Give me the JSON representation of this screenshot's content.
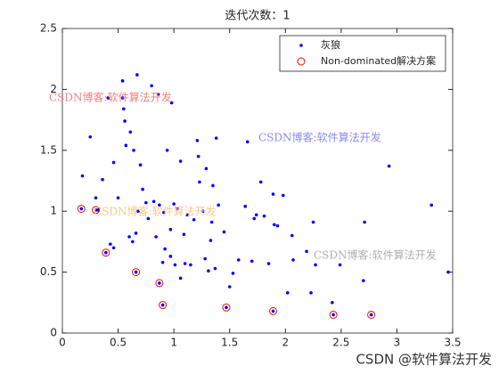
{
  "chart_data": {
    "type": "scatter",
    "title": "迭代次数：1",
    "xlim": [
      0,
      3.5
    ],
    "xticks": [
      0,
      0.5,
      1,
      1.5,
      2,
      2.5,
      3,
      3.5
    ],
    "ylim": [
      0,
      2.5
    ],
    "yticks": [
      0,
      0.5,
      1,
      1.5,
      2,
      2.5
    ],
    "legend": "north-east",
    "series": [
      {
        "name": "灰狼",
        "color": "#0000ff",
        "marker": "dot",
        "x": [
          0.18,
          0.25,
          0.3,
          0.32,
          0.36,
          0.41,
          0.43,
          0.46,
          0.46,
          0.5,
          0.54,
          0.54,
          0.55,
          0.56,
          0.57,
          0.6,
          0.61,
          0.63,
          0.64,
          0.66,
          0.67,
          0.68,
          0.7,
          0.72,
          0.75,
          0.77,
          0.8,
          0.82,
          0.84,
          0.86,
          0.87,
          0.9,
          0.91,
          0.92,
          0.94,
          0.97,
          0.97,
          0.98,
          1.0,
          1.01,
          1.03,
          1.06,
          1.06,
          1.09,
          1.1,
          1.12,
          1.15,
          1.18,
          1.21,
          1.22,
          1.23,
          1.26,
          1.28,
          1.29,
          1.31,
          1.33,
          1.34,
          1.35,
          1.37,
          1.38,
          1.4,
          1.45,
          1.5,
          1.53,
          1.58,
          1.64,
          1.66,
          1.7,
          1.72,
          1.74,
          1.78,
          1.81,
          1.85,
          1.89,
          1.9,
          1.93,
          1.98,
          2.02,
          2.06,
          2.07,
          2.19,
          2.23,
          2.25,
          2.27,
          2.42,
          2.49,
          2.7,
          2.71,
          2.93,
          3.31,
          3.46,
          0.17,
          0.3,
          0.39,
          0.66,
          0.87,
          0.9,
          1.47,
          1.89,
          2.43,
          2.77
        ],
        "values": [
          1.29,
          1.61,
          1.11,
          1.01,
          1.26,
          1.93,
          0.73,
          1.4,
          0.7,
          1.11,
          1.93,
          2.07,
          1.84,
          1.74,
          1.54,
          0.79,
          1.65,
          0.75,
          1.5,
          0.82,
          2.12,
          1.0,
          1.38,
          1.18,
          1.07,
          0.94,
          2.03,
          1.08,
          0.79,
          1.96,
          1.05,
          0.58,
          0.99,
          0.69,
          1.5,
          0.85,
          0.63,
          1.89,
          1.06,
          0.56,
          1.02,
          0.45,
          1.41,
          0.81,
          0.57,
          0.97,
          0.56,
          0.93,
          1.58,
          1.45,
          1.24,
          1.0,
          0.61,
          1.35,
          0.51,
          0.76,
          0.91,
          1.21,
          0.53,
          1.6,
          1.05,
          0.83,
          0.38,
          0.49,
          0.6,
          1.04,
          1.57,
          0.59,
          0.94,
          0.97,
          1.24,
          0.96,
          0.57,
          1.14,
          0.89,
          0.88,
          1.13,
          0.33,
          0.8,
          0.6,
          0.67,
          0.33,
          0.91,
          0.56,
          0.25,
          0.56,
          0.43,
          0.91,
          1.37,
          1.05,
          0.5,
          1.02,
          1.01,
          0.66,
          0.5,
          0.41,
          0.23,
          0.21,
          0.18,
          0.15,
          0.15
        ]
      },
      {
        "name": "Non-dominated解决方案",
        "color": "#ff0000",
        "marker": "circle",
        "x": [
          0.17,
          0.3,
          0.39,
          0.66,
          0.87,
          0.9,
          1.47,
          1.89,
          2.43,
          2.77
        ],
        "values": [
          1.02,
          1.01,
          0.66,
          0.5,
          0.41,
          0.23,
          0.21,
          0.18,
          0.15,
          0.15
        ]
      }
    ],
    "annotations": [
      {
        "text": "CSDN博客:软件算法开发",
        "color": "#f08080"
      },
      {
        "text": "CSDN博客:软件算法开发",
        "color": "#8a8af0"
      },
      {
        "text": "CSDN博客:软件算法开发",
        "color": "#f5c98a"
      },
      {
        "text": "CSDN博客:软件算法开发",
        "color": "#b0b0b0"
      }
    ],
    "footer": "CSDN @软件算法开发"
  }
}
